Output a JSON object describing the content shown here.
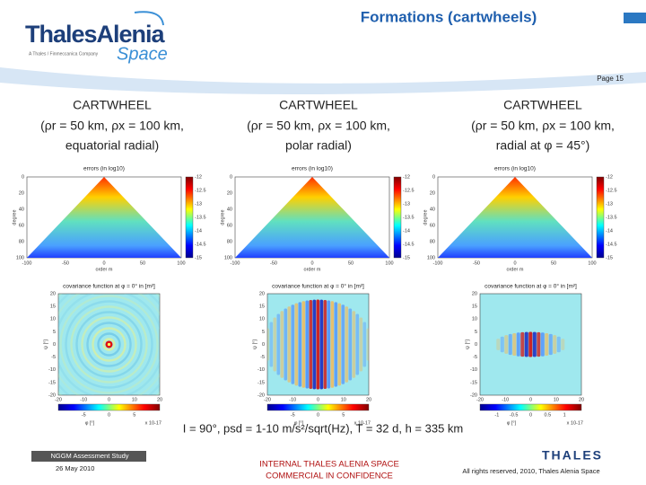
{
  "header": {
    "title": "Formations (cartwheels)",
    "page": "Page 15",
    "logo_main": "ThalesAlenia",
    "logo_sub": "Space",
    "logo_tagline": "A Thales / Finmeccanica Company"
  },
  "columns": [
    {
      "heading": "CARTWHEEL",
      "params": "(ρr = 50 km, ρx = 100 km,",
      "detail": "equatorial radial)",
      "top": {
        "title": "errors (in log10)",
        "ylabel": "degree",
        "xlabel": "order m",
        "yticks": [
          "0",
          "20",
          "40",
          "60",
          "80",
          "100"
        ],
        "xticks": [
          "-100",
          "-50",
          "0",
          "50",
          "100"
        ],
        "cbar_ticks": [
          "-12",
          "-12.5",
          "-13",
          "-13.5",
          "-14",
          "-14.5",
          "-15"
        ]
      },
      "bottom": {
        "title": "covariance function at φ = 0° in [m²]",
        "ylabel": "ψ [°]",
        "xlabel": "φ [°]",
        "yticks": [
          "20",
          "15",
          "10",
          "5",
          "0",
          "-5",
          "-10",
          "-15",
          "-20"
        ],
        "xticks": [
          "-20",
          "-10",
          "0",
          "10",
          "20"
        ],
        "cbar_ticks": [
          "-5",
          "0",
          "5"
        ],
        "cbar_exponent": "x 10-17"
      }
    },
    {
      "heading": "CARTWHEEL",
      "params": "(ρr = 50 km, ρx = 100 km,",
      "detail": "polar radial)",
      "top": {
        "title": "errors (in log10)",
        "ylabel": "degree",
        "xlabel": "order m",
        "yticks": [
          "0",
          "20",
          "40",
          "60",
          "80",
          "100"
        ],
        "xticks": [
          "-100",
          "-50",
          "0",
          "50",
          "100"
        ],
        "cbar_ticks": [
          "-12",
          "-12.5",
          "-13",
          "-13.5",
          "-14",
          "-14.5",
          "-15"
        ]
      },
      "bottom": {
        "title": "covariance function at φ = 0° in [m²]",
        "ylabel": "ψ [°]",
        "xlabel": "φ [°]",
        "yticks": [
          "20",
          "15",
          "10",
          "5",
          "0",
          "-5",
          "-10",
          "-15",
          "-20"
        ],
        "xticks": [
          "-20",
          "-10",
          "0",
          "10",
          "20"
        ],
        "cbar_ticks": [
          "-5",
          "0",
          "5"
        ],
        "cbar_exponent": "x 10-17"
      }
    },
    {
      "heading": "CARTWHEEL",
      "params": "(ρr = 50 km, ρx = 100 km,",
      "detail": "radial at φ = 45°)",
      "top": {
        "title": "errors (in log10)",
        "ylabel": "degree",
        "xlabel": "order m",
        "yticks": [
          "0",
          "20",
          "40",
          "60",
          "80",
          "100"
        ],
        "xticks": [
          "-100",
          "-50",
          "0",
          "50",
          "100"
        ],
        "cbar_ticks": [
          "-12",
          "-12.5",
          "-13",
          "-13.5",
          "-14",
          "-14.5",
          "-15"
        ]
      },
      "bottom": {
        "title": "covariance function at φ = 0° in [m²]",
        "ylabel": "ψ [°]",
        "xlabel": "φ [°]",
        "yticks": [
          "20",
          "15",
          "10",
          "5",
          "0",
          "-5",
          "-10",
          "-15",
          "-20"
        ],
        "xticks": [
          "-20",
          "-10",
          "0",
          "10",
          "20"
        ],
        "cbar_ticks": [
          "-1",
          "-0.5",
          "0",
          "0.5",
          "1"
        ],
        "cbar_exponent": "x 10-17"
      }
    }
  ],
  "caption": "I = 90°, psd = 1-10 m/s²/sqrt(Hz), T = 32 d, h = 335 km",
  "footer": {
    "study": "NGGM Assessment Study",
    "date": "26 May 2010",
    "notice_line1": "INTERNAL THALES ALENIA SPACE",
    "notice_line2": "COMMERCIAL IN CONFIDENCE",
    "rights": "All rights reserved, 2010, Thales Alenia Space",
    "logo": "THALES"
  }
}
